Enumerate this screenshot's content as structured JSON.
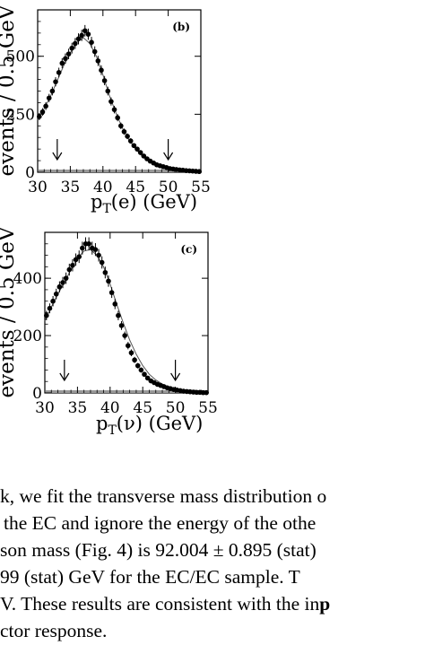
{
  "figure": {
    "panels": [
      {
        "label": "(b)",
        "y_title": "events / 0.5 GeV",
        "x_title_main": "p",
        "x_title_sub": "T",
        "x_title_rest": "(e) (GeV)"
      },
      {
        "label": "(c)",
        "y_title": "events / 0.5 GeV",
        "x_title_main": "p",
        "x_title_sub": "T",
        "x_title_rest": "(ν) (GeV)"
      }
    ]
  },
  "chart_data": [
    {
      "type": "scatter",
      "title": "(b)",
      "xlabel": "pT(e) (GeV)",
      "ylabel": "events / 0.5 GeV",
      "xlim": [
        30,
        55
      ],
      "ylim": [
        0,
        700
      ],
      "xticks": [
        30,
        35,
        40,
        45,
        50,
        55
      ],
      "yticks": [
        0,
        250,
        500
      ],
      "arrows_x": [
        33,
        50
      ],
      "points": {
        "x": [
          30.25,
          30.75,
          31.25,
          31.75,
          32.25,
          32.75,
          33.25,
          33.75,
          34.25,
          34.75,
          35.25,
          35.75,
          36.25,
          36.75,
          37.25,
          37.75,
          38.25,
          38.75,
          39.25,
          39.75,
          40.25,
          40.75,
          41.25,
          41.75,
          42.25,
          42.75,
          43.25,
          43.75,
          44.25,
          44.75,
          45.25,
          45.75,
          46.25,
          46.75,
          47.25,
          47.75,
          48.25,
          48.75,
          49.25,
          49.75,
          50.25,
          50.75,
          51.25,
          51.75,
          52.25,
          52.75,
          53.25,
          53.75,
          54.25,
          54.75
        ],
        "y": [
          240,
          260,
          285,
          320,
          350,
          390,
          430,
          470,
          490,
          510,
          535,
          555,
          575,
          590,
          610,
          595,
          560,
          520,
          480,
          440,
          395,
          350,
          305,
          270,
          235,
          200,
          175,
          155,
          135,
          115,
          100,
          85,
          70,
          58,
          48,
          40,
          32,
          28,
          24,
          20,
          16,
          14,
          12,
          10,
          9,
          7,
          6,
          5,
          4,
          3
        ]
      },
      "fit": {
        "x": [
          30,
          31,
          32,
          33,
          34,
          35,
          36,
          37,
          38,
          39,
          40,
          41,
          42,
          43,
          44,
          45,
          46,
          47,
          48,
          49,
          50,
          51,
          52,
          53,
          54,
          55
        ],
        "y": [
          225,
          275,
          330,
          395,
          460,
          515,
          560,
          580,
          555,
          500,
          420,
          330,
          255,
          190,
          140,
          100,
          70,
          50,
          36,
          26,
          18,
          13,
          9,
          6,
          4,
          3
        ]
      }
    },
    {
      "type": "scatter",
      "title": "(c)",
      "xlabel": "pT(ν) (GeV)",
      "ylabel": "events / 0.5 GeV",
      "xlim": [
        30,
        55
      ],
      "ylim": [
        0,
        560
      ],
      "xticks": [
        30,
        35,
        40,
        45,
        50,
        55
      ],
      "yticks": [
        0,
        200,
        400
      ],
      "arrows_x": [
        33,
        50
      ],
      "points": {
        "x": [
          30.25,
          30.75,
          31.25,
          31.75,
          32.25,
          32.75,
          33.25,
          33.75,
          34.25,
          34.75,
          35.25,
          35.75,
          36.25,
          36.75,
          37.25,
          37.75,
          38.25,
          38.75,
          39.25,
          39.75,
          40.25,
          40.75,
          41.25,
          41.75,
          42.25,
          42.75,
          43.25,
          43.75,
          44.25,
          44.75,
          45.25,
          45.75,
          46.25,
          46.75,
          47.25,
          47.75,
          48.25,
          48.75,
          49.25,
          49.75,
          50.25,
          50.75,
          51.25,
          51.75,
          52.25,
          52.75,
          53.25,
          53.75,
          54.25,
          54.75
        ],
        "y": [
          270,
          295,
          320,
          345,
          370,
          385,
          400,
          430,
          445,
          465,
          475,
          505,
          520,
          520,
          505,
          500,
          480,
          455,
          420,
          390,
          350,
          310,
          270,
          235,
          200,
          165,
          140,
          115,
          95,
          80,
          65,
          52,
          42,
          36,
          30,
          26,
          22,
          18,
          15,
          12,
          10,
          8,
          6,
          5,
          4,
          3,
          2,
          2,
          1,
          1
        ]
      },
      "fit": {
        "x": [
          30,
          31,
          32,
          33,
          34,
          35,
          36,
          37,
          38,
          39,
          40,
          41,
          42,
          43,
          44,
          45,
          46,
          47,
          48,
          49,
          50,
          51,
          52,
          53,
          54,
          55
        ],
        "y": [
          250,
          300,
          345,
          385,
          430,
          470,
          495,
          500,
          480,
          440,
          380,
          310,
          245,
          185,
          135,
          95,
          65,
          45,
          31,
          21,
          14,
          9,
          6,
          4,
          2,
          1
        ]
      }
    }
  ],
  "body_text": [
    {
      "pre": "k, we fit the transverse mass distribution o",
      "bold": ""
    },
    {
      "pre": "the EC and ignore the energy of the othe",
      "bold": ""
    },
    {
      "pre": "son mass (Fig. 4) is 92.004 ± 0.895 (stat)",
      "bold": ""
    },
    {
      "pre": "99 (stat) GeV for the EC/EC sample.  T",
      "bold": ""
    },
    {
      "pre": "V. These results are consistent with the in",
      "bold": "p"
    },
    {
      "pre": "ctor response.",
      "bold": ""
    }
  ]
}
